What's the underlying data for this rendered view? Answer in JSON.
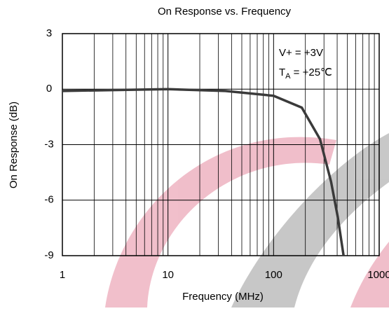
{
  "chart_data": {
    "type": "line",
    "title": "On Response vs. Frequency",
    "x_label": "Frequency (MHz)",
    "y_label": "On Response (dB)",
    "x_scale": "log",
    "xlim": [
      1,
      1000
    ],
    "xticks": [
      1,
      10,
      100,
      1000
    ],
    "ylim": [
      -9,
      3
    ],
    "yticks": [
      3,
      0,
      -3,
      -6,
      -9
    ],
    "grid": true,
    "minor_grid": true,
    "annotations": [
      "V+ = +3V",
      [
        "T",
        "A",
        " = +25℃"
      ]
    ],
    "x": [
      1,
      3,
      10,
      35,
      100,
      185,
      275,
      350,
      405,
      460
    ],
    "series": [
      {
        "color": "#3a3a3a",
        "values": [
          -0.1,
          -0.05,
          0,
          -0.1,
          -0.36,
          -1.0,
          -2.7,
          -5.0,
          -6.9,
          -9.0
        ]
      }
    ]
  }
}
